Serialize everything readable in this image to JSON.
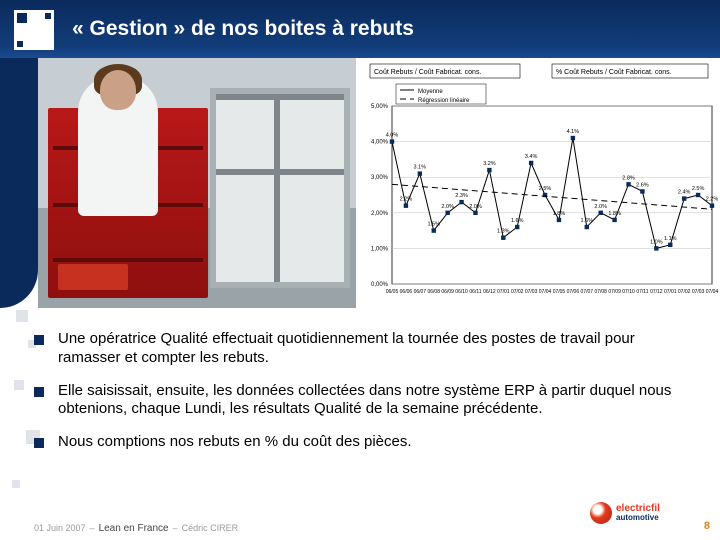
{
  "title": "« Gestion » de nos boites à rebuts",
  "bullets": {
    "b1": "Une opératrice Qualité effectuait quotidiennement la tournée des postes de travail pour ramasser et compter les rebuts.",
    "b2": "Elle saisissait, ensuite, les données collectées dans notre système ERP à partir duquel nous obtenions, chaque Lundi, les résultats Qualité de la semaine précédente.",
    "b3": "Nous comptions nos rebuts en % du coût des pièces."
  },
  "chart": {
    "legend_box1": "Coût Rebuts / Coût Fabricat. cons.",
    "legend_box2": "% Coût Rebuts / Coût Fabricat. cons.",
    "legend_series1": "Moyenne",
    "legend_series2": "Régression linéaire",
    "y_ticks": [
      "5,00%",
      "4,00%",
      "3,00%",
      "2,00%",
      "1,00%",
      "0,00%"
    ],
    "ylim": [
      0.0,
      5.0
    ],
    "x_labels": [
      "06/05",
      "06/06",
      "06/07",
      "06/08",
      "06/09",
      "06/10",
      "06/11",
      "06/12",
      "07/01",
      "07/02",
      "07/03",
      "07/04",
      "07/05",
      "07/06",
      "07/07",
      "07/08",
      "07/09",
      "07/10",
      "07/11",
      "07/12",
      "07/01",
      "07/02",
      "07/03",
      "07/04"
    ],
    "series": [
      4.0,
      2.2,
      3.1,
      1.5,
      2.0,
      2.3,
      2.0,
      3.2,
      1.3,
      1.6,
      3.4,
      2.5,
      1.8,
      4.1,
      1.6,
      2.0,
      1.8,
      2.8,
      2.6,
      1.0,
      1.1,
      2.4,
      2.5,
      2.2
    ],
    "regression_start": 2.8,
    "regression_end": 2.1,
    "line_color": "#000000",
    "marker_color": "#0a2a5c",
    "regression_dash": "6,4",
    "grid_color": "#bfbfbf",
    "axis_color": "#000000",
    "bg": "#ffffff",
    "title_fontsize": 7,
    "tick_fontsize": 6
  },
  "logo": {
    "brand": "electricfil",
    "sub": "automotive"
  },
  "footer": {
    "date": "01 Juin 2007",
    "sep1": "–",
    "event": "Lean en France",
    "sep2": "–",
    "author": "Cédric CIRER"
  },
  "page_number": "8",
  "colors": {
    "primary": "#0a2a5c",
    "accent_red": "#b91818",
    "accent_orange": "#e0861f"
  }
}
